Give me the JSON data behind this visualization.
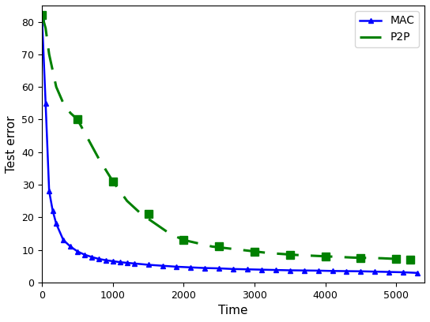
{
  "title": "",
  "xlabel": "Time",
  "ylabel": "Test error",
  "xlim": [
    0,
    5400
  ],
  "ylim": [
    0,
    85
  ],
  "mac_color": "#0000ff",
  "p2p_color": "#008000",
  "mac_label": "MAC",
  "p2p_label": "P2P",
  "mac_x": [
    0,
    50,
    100,
    150,
    200,
    300,
    400,
    500,
    600,
    700,
    800,
    900,
    1000,
    1100,
    1200,
    1300,
    1500,
    1700,
    1900,
    2100,
    2300,
    2500,
    2700,
    2900,
    3100,
    3300,
    3500,
    3700,
    3900,
    4100,
    4300,
    4500,
    4700,
    4900,
    5100,
    5300
  ],
  "mac_y": [
    81,
    55,
    28,
    22,
    18,
    13,
    11,
    9.5,
    8.5,
    7.8,
    7.2,
    6.8,
    6.5,
    6.2,
    6.0,
    5.8,
    5.4,
    5.1,
    4.8,
    4.6,
    4.4,
    4.3,
    4.1,
    4.0,
    3.9,
    3.8,
    3.7,
    3.65,
    3.6,
    3.5,
    3.45,
    3.4,
    3.3,
    3.2,
    3.1,
    2.9
  ],
  "p2p_x": [
    0,
    50,
    100,
    200,
    300,
    400,
    500,
    600,
    700,
    800,
    1000,
    1200,
    1400,
    1600,
    1800,
    2000,
    2200,
    2400,
    2600,
    2800,
    3000,
    3200,
    3400,
    3600,
    3800,
    4000,
    4200,
    4400,
    4600,
    4800,
    5000,
    5200
  ],
  "p2p_y": [
    82,
    78,
    70,
    60,
    55,
    52,
    50,
    46,
    42,
    38,
    31,
    25,
    21,
    18,
    15,
    13,
    12,
    11,
    10.5,
    10,
    9.5,
    9,
    8.7,
    8.4,
    8.2,
    8.0,
    7.8,
    7.6,
    7.5,
    7.4,
    7.2,
    7.0
  ],
  "p2p_marker_x": [
    0,
    500,
    1000,
    1500,
    2000,
    2500,
    3000,
    3500,
    4000,
    4500,
    5000,
    5200
  ],
  "p2p_marker_y": [
    82,
    50,
    31,
    21,
    13,
    11,
    9.5,
    8.4,
    8.0,
    7.5,
    7.2,
    7.0
  ]
}
